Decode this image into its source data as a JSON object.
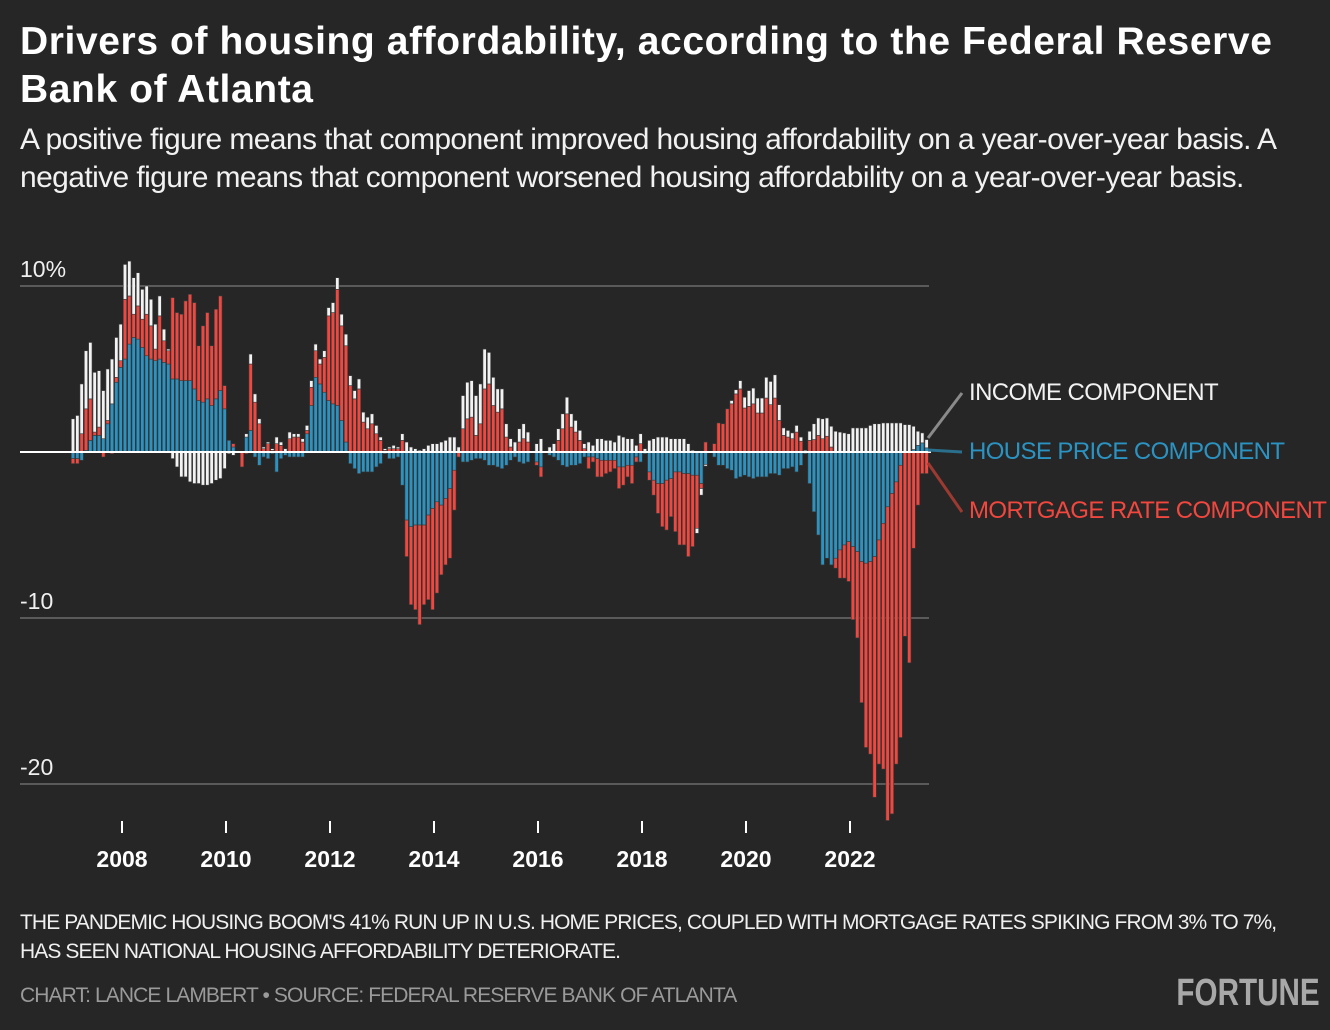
{
  "title": "Drivers of housing affordability, according to the Federal Reserve Bank of Atlanta",
  "subtitle": "A positive figure means that component improved housing affordability on a year-over-year basis. A negative figure means that component worsened housing affordability on a year-over-year basis.",
  "note": "THE PANDEMIC HOUSING BOOM'S 41% RUN UP IN U.S. HOME PRICES, COUPLED WITH MORTGAGE RATES SPIKING FROM 3% TO 7%, HAS SEEN NATIONAL HOUSING AFFORDABILITY DETERIORATE.",
  "credit": "CHART: LANCE LAMBERT • SOURCE: FEDERAL RESERVE BANK OF ATLANTA",
  "logo": "FORTUNE",
  "colors": {
    "background": "#262626",
    "income": "#f2f2f2",
    "house_price": "#2b93c2",
    "mortgage_rate": "#f2473f"
  },
  "chart_data": {
    "type": "bar",
    "stacked": true,
    "frequency": "monthly",
    "x_range": [
      "2007-01",
      "2023-06"
    ],
    "ylim": [
      -23,
      11
    ],
    "yticks": [
      {
        "value": 10,
        "label": "10%"
      },
      {
        "value": -10,
        "label": "-10"
      },
      {
        "value": -20,
        "label": "-20"
      }
    ],
    "xticks": [
      "2008",
      "2010",
      "2012",
      "2014",
      "2016",
      "2018",
      "2020",
      "2022"
    ],
    "grid": true,
    "legend": "right",
    "series": [
      {
        "name": "INCOME COMPONENT",
        "color": "#f2f2f2",
        "values": [
          2.0,
          2.2,
          3.0,
          3.5,
          3.4,
          3.6,
          3.4,
          2.9,
          3.1,
          2.7,
          2.4,
          2.2,
          2.1,
          2.1,
          2.2,
          2.0,
          1.8,
          1.7,
          1.6,
          1.5,
          1.2,
          0.7,
          0.1,
          -0.4,
          -0.9,
          -1.5,
          -1.5,
          -1.8,
          -1.9,
          -1.9,
          -2.0,
          -2.0,
          -1.9,
          -1.7,
          -1.6,
          -1.0,
          -0.1,
          -0.2,
          0,
          0,
          0.2,
          0.6,
          0.5,
          0.3,
          0.1,
          0.1,
          0.1,
          0.4,
          0.2,
          0.2,
          0.4,
          0.2,
          0.2,
          0.2,
          0.3,
          0.4,
          0.4,
          0.3,
          0.4,
          0.5,
          0.6,
          0.7,
          0.7,
          0.7,
          0.6,
          0.5,
          0.6,
          0.6,
          0.7,
          0.6,
          0.5,
          0.2,
          0.1,
          0.1,
          0.2,
          0.1,
          0.4,
          0.6,
          0.3,
          0.2,
          0.1,
          0.2,
          0.4,
          0.5,
          0.5,
          0.6,
          0.7,
          0.9,
          0.9,
          0.3,
          2.0,
          2.2,
          2.2,
          2.4,
          2.4,
          2.4,
          1.9,
          1.7,
          1.4,
          1.2,
          0.8,
          0.5,
          0.6,
          0.8,
          0.9,
          0.6,
          0,
          0.5,
          0.8,
          0,
          0.3,
          0.5,
          0.7,
          0.9,
          1.0,
          0.8,
          0.7,
          0.6,
          0.3,
          0.6,
          0.4,
          0.8,
          0.8,
          0.7,
          0.7,
          0.6,
          1.0,
          0.9,
          0.8,
          0.8,
          0.4,
          0.6,
          0.2,
          0.7,
          0.8,
          0.9,
          0.9,
          0.9,
          0.8,
          0.8,
          0.8,
          0.8,
          0.5,
          0.1,
          -0.3,
          -0.4,
          -0.1,
          0,
          0,
          0,
          0,
          0,
          0.2,
          0.25,
          0.5,
          0.65,
          0.95,
          0.95,
          0.9,
          0.9,
          1.25,
          1.4,
          1.4,
          0.95,
          0.45,
          0.4,
          0.35,
          0.4,
          0.25,
          0.1,
          0.55,
          0.95,
          1.05,
          1.2,
          1.1,
          1.25,
          1.25,
          1.2,
          1.15,
          1.1,
          1.45,
          1.45,
          1.45,
          1.45,
          1.6,
          1.7,
          1.7,
          1.75,
          1.75,
          1.75,
          1.75,
          1.75,
          1.65,
          1.65,
          1.4,
          0.85,
          0.6,
          0.5
        ]
      },
      {
        "name": "HOUSE PRICE COMPONENT",
        "color": "#2b93c2",
        "values": [
          -0.4,
          -0.4,
          -0.5,
          0.1,
          0.7,
          1.0,
          1.0,
          0.8,
          1.7,
          2.9,
          4.2,
          5.1,
          5.6,
          6.5,
          6.9,
          6.8,
          6.3,
          5.8,
          5.6,
          5.5,
          5.6,
          5.4,
          5.3,
          4.4,
          4.4,
          4.3,
          4.3,
          4.3,
          3.8,
          3.1,
          3.0,
          3.2,
          2.8,
          3.2,
          3.7,
          2.6,
          0.7,
          0.3,
          0,
          0,
          0.9,
          1.3,
          -0.3,
          -0.8,
          -0.3,
          -0.4,
          -0.1,
          -1.2,
          -0.4,
          -0.2,
          -0.3,
          -0.3,
          -0.3,
          -0.3,
          1.1,
          2.8,
          4.5,
          4.1,
          3.6,
          3.1,
          2.9,
          2.8,
          1.9,
          0.6,
          -0.7,
          -1.0,
          -1.3,
          -1.2,
          -1.2,
          -1.2,
          -0.9,
          -0.7,
          -0.1,
          -0.4,
          -0.4,
          -0.3,
          -2.0,
          -4.1,
          -4.5,
          -4.4,
          -4.4,
          -4.4,
          -3.8,
          -3.4,
          -3.0,
          -3.2,
          -2.8,
          -2.2,
          -1.1,
          0,
          -0.6,
          -0.6,
          -0.5,
          -0.4,
          -0.4,
          -0.5,
          -0.8,
          -0.8,
          -0.9,
          -1.0,
          -0.8,
          -0.5,
          -0.3,
          -0.6,
          -0.7,
          -0.6,
          0,
          -0.6,
          -0.9,
          0,
          -0.2,
          -0.3,
          -0.5,
          -0.8,
          -0.9,
          -0.8,
          -0.8,
          -0.7,
          -0.3,
          -0.3,
          -0.3,
          -0.4,
          -0.5,
          -0.5,
          -0.5,
          -0.5,
          -0.9,
          -0.9,
          -0.8,
          -0.8,
          -0.3,
          -0.6,
          -0.1,
          -1.2,
          -1.7,
          -1.9,
          -1.9,
          -1.7,
          -1.6,
          -1.2,
          -1.2,
          -1.3,
          -1.3,
          -1.4,
          -1.4,
          -1.9,
          -0.75,
          0,
          -0.3,
          -0.8,
          -0.8,
          -1.0,
          -1.1,
          -1.6,
          -1.5,
          -1.4,
          -1.5,
          -1.6,
          -1.5,
          -1.5,
          -1.5,
          -1.3,
          -1.3,
          -1.4,
          -1.0,
          -1.0,
          -0.9,
          -1.2,
          -0.8,
          -0.1,
          -1.9,
          -3.6,
          -5.0,
          -6.8,
          -6.4,
          -6.8,
          -6.4,
          -5.9,
          -5.6,
          -5.4,
          -5.7,
          -6.0,
          -6.6,
          -6.7,
          -6.6,
          -6.3,
          -5.3,
          -4.3,
          -3.3,
          -2.5,
          -1.8,
          -0.8,
          0,
          0,
          0.15,
          0.4,
          0.55,
          0.25
        ]
      },
      {
        "name": "MORTGAGE RATE COMPONENT",
        "color": "#f2473f",
        "values": [
          -0.3,
          -0.3,
          1.1,
          2.5,
          2.5,
          0.2,
          0.5,
          -0.3,
          0.2,
          -0.1,
          0.3,
          0.4,
          3.6,
          2.9,
          1.4,
          2.0,
          1.7,
          2.5,
          2.0,
          0.7,
          2.6,
          1.3,
          0.8,
          4.9,
          4.0,
          4.0,
          4.8,
          5.2,
          5.2,
          3.3,
          4.6,
          5.2,
          3.6,
          5.4,
          5.7,
          1.4,
          0,
          0.2,
          0,
          -0.9,
          -0.1,
          4.0,
          3.0,
          1.7,
          0.2,
          0.5,
          0.1,
          0.5,
          0.4,
          0,
          0.8,
          0.9,
          0.9,
          0.6,
          0.2,
          1.1,
          1.6,
          1.2,
          2.1,
          5.1,
          5.5,
          7.0,
          5.7,
          5.8,
          4.0,
          3.2,
          3.8,
          1.8,
          1.4,
          1.7,
          1.1,
          0.7,
          0.1,
          0.2,
          0.2,
          0.2,
          0.7,
          -2.2,
          -4.7,
          -5.1,
          -6.0,
          -4.8,
          -5.1,
          -6.1,
          -5.5,
          -4.2,
          -4.0,
          -4.2,
          -2.4,
          -0.3,
          1.4,
          2.0,
          2.1,
          1.0,
          1.7,
          3.8,
          4.1,
          2.8,
          2.4,
          2.6,
          0.9,
          0.3,
          0,
          0.6,
          0.8,
          0.6,
          0,
          -0.2,
          -0.6,
          0,
          0,
          0,
          0.7,
          1.4,
          2.3,
          1.5,
          1.2,
          0.7,
          0.2,
          -0.7,
          -0.3,
          -1.1,
          -1.0,
          -0.8,
          -0.7,
          -0.5,
          -1.3,
          -1.1,
          -0.7,
          -1.1,
          -0.3,
          0.5,
          0,
          -0.5,
          -0.9,
          -1.8,
          -2.6,
          -3.0,
          -2.3,
          -3.6,
          -4.4,
          -4.3,
          -5.0,
          -4.3,
          -3.2,
          -0.3,
          0.6,
          0,
          0.5,
          1.75,
          1.7,
          2.6,
          2.9,
          3.5,
          3.8,
          2.65,
          2.75,
          2.9,
          2.35,
          2.35,
          3.25,
          2.85,
          3.25,
          1.9,
          1.0,
          0.9,
          0.8,
          1.2,
          0.65,
          0,
          0.7,
          0.75,
          1.0,
          0.8,
          0.95,
          0.3,
          -0.6,
          -1.7,
          -2.0,
          -2.4,
          -4.4,
          -5.2,
          -8.5,
          -11.1,
          -11.6,
          -14.5,
          -13.5,
          -14.8,
          -18.9,
          -19.3,
          -17.0,
          -16.4,
          -11.1,
          -12.7,
          -5.8,
          -3.2,
          -1.3,
          -1.3
        ]
      }
    ]
  }
}
